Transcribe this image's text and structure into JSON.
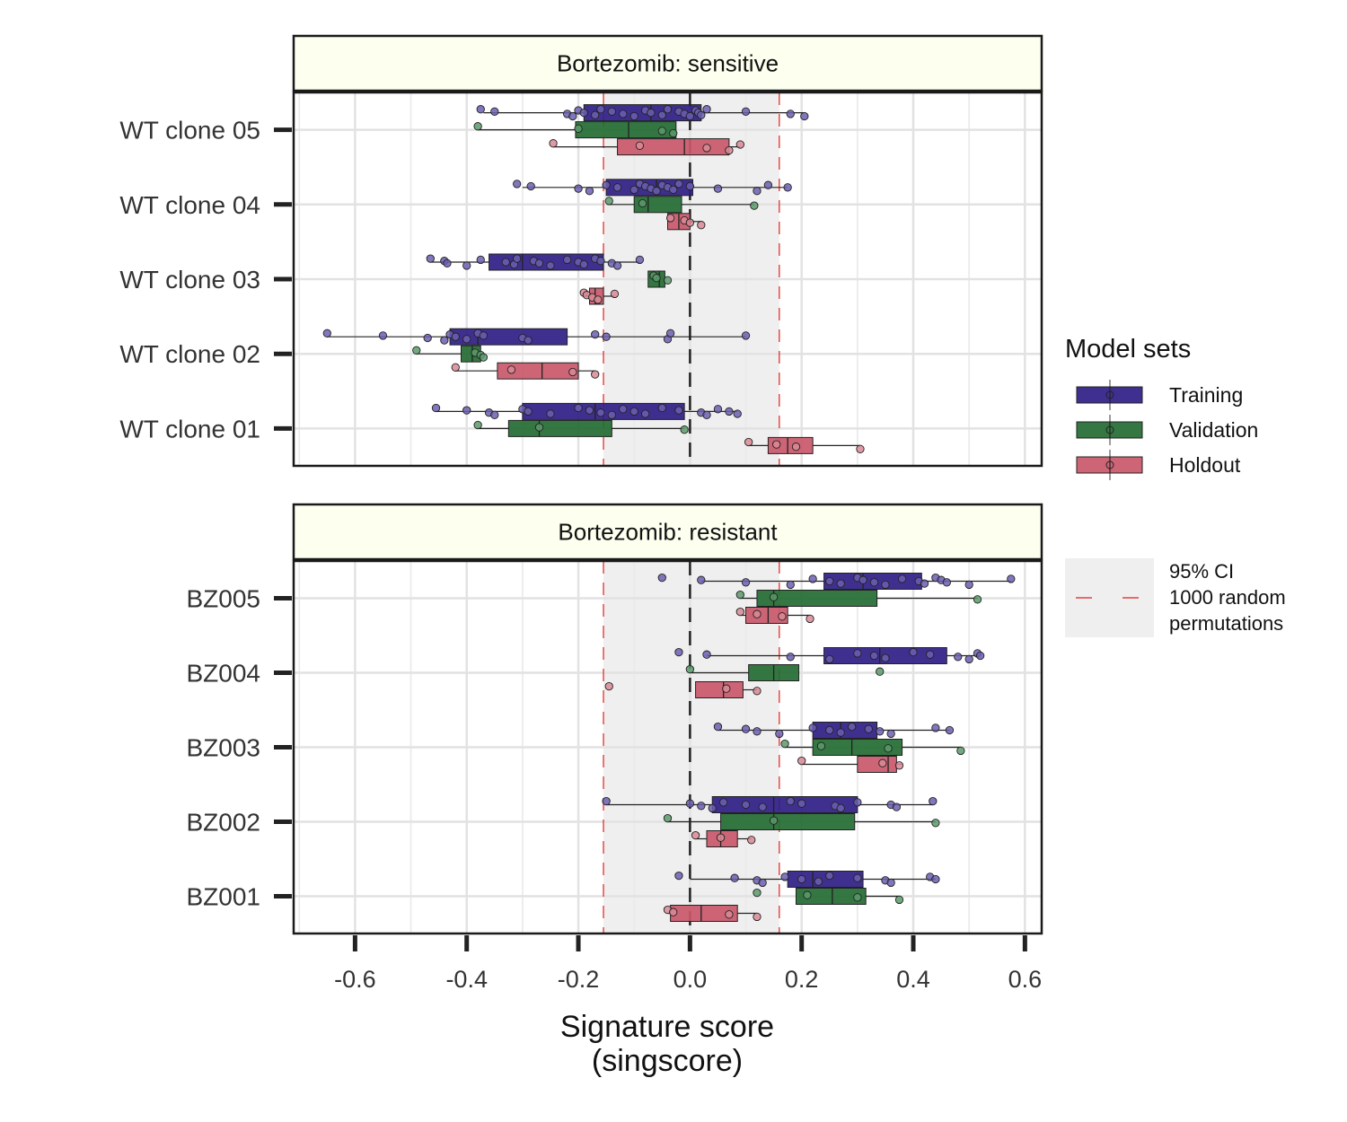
{
  "chart_data": {
    "type": "boxplot",
    "xlabel_lines": [
      "Signature score",
      "(singscore)"
    ],
    "xlim": [
      -0.71,
      0.63
    ],
    "x_ticks": [
      -0.6,
      -0.4,
      -0.2,
      0.0,
      0.2,
      0.4,
      0.6
    ],
    "x_tick_labels": [
      "-0.6",
      "-0.4",
      "-0.2",
      "0.0",
      "0.2",
      "0.4",
      "0.6"
    ],
    "grid": true,
    "ci": {
      "lower": -0.155,
      "upper": 0.16,
      "center": 0.0
    },
    "legend": {
      "title": "Model sets",
      "placement": "right",
      "ci_label_lines": [
        "95% CI",
        "1000 random",
        "permutations"
      ]
    },
    "series": [
      {
        "name": "Training",
        "color": "#2f1e87",
        "point_color": "#6a5fb0"
      },
      {
        "name": "Validation",
        "color": "#236b32",
        "point_color": "#5a9a6a"
      },
      {
        "name": "Holdout",
        "color": "#c9586a",
        "point_color": "#d98a95"
      }
    ],
    "panels": [
      {
        "title": "Bortezomib: sensitive",
        "groups": [
          {
            "label": "WT clone 05",
            "boxes": [
              {
                "set": "Training",
                "stats": [
                  -0.37,
                  -0.19,
                  -0.07,
                  0.02,
                  0.205
                ],
                "points": [
                  -0.375,
                  -0.35,
                  -0.22,
                  -0.21,
                  -0.2,
                  -0.19,
                  -0.17,
                  -0.16,
                  -0.14,
                  -0.12,
                  -0.1,
                  -0.08,
                  -0.07,
                  -0.05,
                  -0.04,
                  -0.02,
                  -0.01,
                  0.0,
                  0.01,
                  0.015,
                  0.02,
                  0.03,
                  0.1,
                  0.18,
                  0.205
                ]
              },
              {
                "set": "Validation",
                "stats": [
                  -0.38,
                  -0.205,
                  -0.11,
                  -0.025,
                  -0.025
                ],
                "points": [
                  -0.38,
                  -0.2,
                  -0.05,
                  -0.03
                ]
              },
              {
                "set": "Holdout",
                "stats": [
                  -0.245,
                  -0.13,
                  -0.01,
                  0.07,
                  0.09
                ],
                "points": [
                  -0.245,
                  -0.09,
                  0.03,
                  0.07,
                  0.09
                ]
              }
            ]
          },
          {
            "label": "WT clone 04",
            "boxes": [
              {
                "set": "Training",
                "stats": [
                  -0.3,
                  -0.15,
                  -0.06,
                  0.005,
                  0.175
                ],
                "points": [
                  -0.31,
                  -0.285,
                  -0.2,
                  -0.18,
                  -0.15,
                  -0.13,
                  -0.1,
                  -0.09,
                  -0.08,
                  -0.07,
                  -0.06,
                  -0.05,
                  -0.04,
                  -0.03,
                  -0.02,
                  0.0,
                  0.05,
                  0.12,
                  0.14,
                  0.175
                ]
              },
              {
                "set": "Validation",
                "stats": [
                  -0.145,
                  -0.1,
                  -0.075,
                  -0.015,
                  0.115
                ],
                "points": [
                  -0.145,
                  -0.085,
                  0.115
                ]
              },
              {
                "set": "Holdout",
                "stats": [
                  -0.04,
                  -0.04,
                  -0.02,
                  0.0,
                  0.02
                ],
                "points": [
                  -0.035,
                  -0.01,
                  0.0,
                  0.02
                ]
              }
            ]
          },
          {
            "label": "WT clone 03",
            "boxes": [
              {
                "set": "Training",
                "stats": [
                  -0.465,
                  -0.36,
                  -0.3,
                  -0.155,
                  -0.09
                ],
                "points": [
                  -0.465,
                  -0.44,
                  -0.435,
                  -0.4,
                  -0.375,
                  -0.33,
                  -0.315,
                  -0.31,
                  -0.28,
                  -0.27,
                  -0.25,
                  -0.22,
                  -0.2,
                  -0.19,
                  -0.17,
                  -0.16,
                  -0.14,
                  -0.13,
                  -0.09
                ]
              },
              {
                "set": "Validation",
                "stats": [
                  -0.075,
                  -0.075,
                  -0.055,
                  -0.045,
                  -0.045
                ],
                "points": [
                  -0.065,
                  -0.06,
                  -0.04
                ]
              },
              {
                "set": "Holdout",
                "stats": [
                  -0.19,
                  -0.18,
                  -0.17,
                  -0.155,
                  -0.135
                ],
                "points": [
                  -0.19,
                  -0.185,
                  -0.175,
                  -0.165,
                  -0.135
                ]
              }
            ]
          },
          {
            "label": "WT clone 02",
            "boxes": [
              {
                "set": "Training",
                "stats": [
                  -0.65,
                  -0.43,
                  -0.38,
                  -0.22,
                  0.1
                ],
                "points": [
                  -0.65,
                  -0.55,
                  -0.47,
                  -0.44,
                  -0.43,
                  -0.42,
                  -0.4,
                  -0.38,
                  -0.37,
                  -0.3,
                  -0.29,
                  -0.17,
                  -0.15,
                  -0.04,
                  -0.035,
                  0.1
                ]
              },
              {
                "set": "Validation",
                "stats": [
                  -0.49,
                  -0.41,
                  -0.39,
                  -0.375,
                  -0.37
                ],
                "points": [
                  -0.49,
                  -0.385,
                  -0.375,
                  -0.37
                ]
              },
              {
                "set": "Holdout",
                "stats": [
                  -0.42,
                  -0.345,
                  -0.265,
                  -0.2,
                  -0.17
                ],
                "points": [
                  -0.42,
                  -0.32,
                  -0.21,
                  -0.17
                ]
              }
            ]
          },
          {
            "label": "WT clone 01",
            "boxes": [
              {
                "set": "Training",
                "stats": [
                  -0.455,
                  -0.3,
                  -0.17,
                  -0.01,
                  0.085
                ],
                "points": [
                  -0.455,
                  -0.4,
                  -0.36,
                  -0.35,
                  -0.3,
                  -0.29,
                  -0.25,
                  -0.2,
                  -0.18,
                  -0.16,
                  -0.14,
                  -0.12,
                  -0.1,
                  -0.08,
                  -0.05,
                  -0.02,
                  0.02,
                  0.03,
                  0.05,
                  0.07,
                  0.085
                ]
              },
              {
                "set": "Validation",
                "stats": [
                  -0.38,
                  -0.325,
                  -0.27,
                  -0.14,
                  -0.01
                ],
                "points": [
                  -0.38,
                  -0.27,
                  -0.01
                ]
              },
              {
                "set": "Holdout",
                "stats": [
                  0.105,
                  0.14,
                  0.175,
                  0.22,
                  0.305
                ],
                "points": [
                  0.105,
                  0.155,
                  0.19,
                  0.305
                ]
              }
            ]
          }
        ]
      },
      {
        "title": "Bortezomib: resistant",
        "groups": [
          {
            "label": "BZ005",
            "boxes": [
              {
                "set": "Training",
                "stats": [
                  0.02,
                  0.24,
                  0.31,
                  0.415,
                  0.575
                ],
                "points": [
                  -0.05,
                  0.02,
                  0.1,
                  0.18,
                  0.22,
                  0.25,
                  0.27,
                  0.3,
                  0.31,
                  0.33,
                  0.35,
                  0.38,
                  0.41,
                  0.42,
                  0.44,
                  0.45,
                  0.46,
                  0.5,
                  0.575
                ]
              },
              {
                "set": "Validation",
                "stats": [
                  0.09,
                  0.12,
                  0.15,
                  0.335,
                  0.515
                ],
                "points": [
                  0.09,
                  0.15,
                  0.515
                ]
              },
              {
                "set": "Holdout",
                "stats": [
                  0.09,
                  0.1,
                  0.14,
                  0.175,
                  0.215
                ],
                "points": [
                  0.09,
                  0.12,
                  0.165,
                  0.215
                ]
              }
            ]
          },
          {
            "label": "BZ004",
            "boxes": [
              {
                "set": "Training",
                "stats": [
                  0.03,
                  0.24,
                  0.34,
                  0.46,
                  0.52
                ],
                "points": [
                  -0.02,
                  0.03,
                  0.18,
                  0.25,
                  0.3,
                  0.33,
                  0.35,
                  0.4,
                  0.43,
                  0.48,
                  0.5,
                  0.515,
                  0.52
                ]
              },
              {
                "set": "Validation",
                "stats": [
                  0.0,
                  0.105,
                  0.15,
                  0.195,
                  0.195
                ],
                "points": [
                  0.0,
                  0.34
                ]
              },
              {
                "set": "Holdout",
                "stats": [
                  0.01,
                  0.01,
                  0.06,
                  0.095,
                  0.12
                ],
                "points": [
                  -0.145,
                  0.065,
                  0.12
                ]
              }
            ]
          },
          {
            "label": "BZ003",
            "boxes": [
              {
                "set": "Training",
                "stats": [
                  0.05,
                  0.22,
                  0.27,
                  0.335,
                  0.465
                ],
                "points": [
                  0.05,
                  0.1,
                  0.12,
                  0.16,
                  0.22,
                  0.25,
                  0.27,
                  0.29,
                  0.32,
                  0.34,
                  0.36,
                  0.44,
                  0.465
                ]
              },
              {
                "set": "Validation",
                "stats": [
                  0.17,
                  0.22,
                  0.29,
                  0.38,
                  0.485
                ],
                "points": [
                  0.17,
                  0.235,
                  0.355,
                  0.485
                ]
              },
              {
                "set": "Holdout",
                "stats": [
                  0.2,
                  0.3,
                  0.355,
                  0.37,
                  0.38
                ],
                "points": [
                  0.2,
                  0.345,
                  0.375
                ]
              }
            ]
          },
          {
            "label": "BZ002",
            "boxes": [
              {
                "set": "Training",
                "stats": [
                  -0.15,
                  0.04,
                  0.15,
                  0.3,
                  0.435
                ],
                "points": [
                  -0.15,
                  0.0,
                  0.02,
                  0.04,
                  0.06,
                  0.1,
                  0.13,
                  0.18,
                  0.2,
                  0.26,
                  0.27,
                  0.3,
                  0.36,
                  0.37,
                  0.435
                ]
              },
              {
                "set": "Validation",
                "stats": [
                  -0.04,
                  0.055,
                  0.15,
                  0.295,
                  0.44
                ],
                "points": [
                  -0.04,
                  0.15,
                  0.44
                ]
              },
              {
                "set": "Holdout",
                "stats": [
                  0.01,
                  0.03,
                  0.055,
                  0.085,
                  0.11
                ],
                "points": [
                  0.01,
                  0.055,
                  0.11
                ]
              }
            ]
          },
          {
            "label": "BZ001",
            "boxes": [
              {
                "set": "Training",
                "stats": [
                  0.0,
                  0.175,
                  0.22,
                  0.31,
                  0.44
                ],
                "points": [
                  -0.02,
                  0.08,
                  0.12,
                  0.13,
                  0.17,
                  0.2,
                  0.23,
                  0.25,
                  0.3,
                  0.35,
                  0.36,
                  0.43,
                  0.44
                ]
              },
              {
                "set": "Validation",
                "stats": [
                  0.19,
                  0.19,
                  0.255,
                  0.315,
                  0.375
                ],
                "points": [
                  0.12,
                  0.21,
                  0.3,
                  0.375
                ]
              },
              {
                "set": "Holdout",
                "stats": [
                  -0.04,
                  -0.035,
                  0.02,
                  0.085,
                  0.12
                ],
                "points": [
                  -0.04,
                  -0.03,
                  0.07,
                  0.12
                ]
              }
            ]
          }
        ]
      }
    ]
  }
}
